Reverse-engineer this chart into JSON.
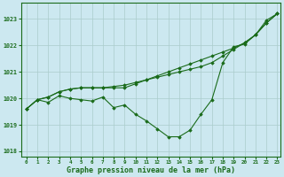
{
  "xlabel": "Graphe pression niveau de la mer (hPa)",
  "background_color": "#cce8f0",
  "grid_color": "#aacccc",
  "line_color": "#1a6b1a",
  "xlim_min": 0,
  "xlim_max": 23,
  "ylim_min": 1017.8,
  "ylim_max": 1023.6,
  "yticks": [
    1018,
    1019,
    1020,
    1021,
    1022,
    1023
  ],
  "xticks": [
    0,
    1,
    2,
    3,
    4,
    5,
    6,
    7,
    8,
    9,
    10,
    11,
    12,
    13,
    14,
    15,
    16,
    17,
    18,
    19,
    20,
    21,
    22,
    23
  ],
  "line_main": [
    1019.6,
    1019.95,
    1019.85,
    1020.1,
    1020.0,
    1019.95,
    1019.9,
    1020.05,
    1019.65,
    1019.75,
    1019.4,
    1019.15,
    1018.85,
    1018.55,
    1018.55,
    1018.8,
    1019.4,
    1019.95,
    1021.35,
    1021.95,
    1022.05,
    1022.4,
    1022.95,
    1023.2
  ],
  "line_upper1": [
    1019.6,
    1019.95,
    1020.05,
    1020.25,
    1020.35,
    1020.4,
    1020.4,
    1020.4,
    1020.4,
    1020.4,
    1020.55,
    1020.7,
    1020.85,
    1021.0,
    1021.15,
    1021.3,
    1021.45,
    1021.6,
    1021.75,
    1021.9,
    1022.1,
    1022.4,
    1022.85,
    1023.2
  ],
  "line_upper2": [
    1019.6,
    1019.95,
    1020.05,
    1020.25,
    1020.35,
    1020.4,
    1020.4,
    1020.4,
    1020.45,
    1020.5,
    1020.6,
    1020.7,
    1020.8,
    1020.9,
    1021.0,
    1021.1,
    1021.2,
    1021.35,
    1021.6,
    1021.85,
    1022.1,
    1022.4,
    1022.85,
    1023.2
  ]
}
